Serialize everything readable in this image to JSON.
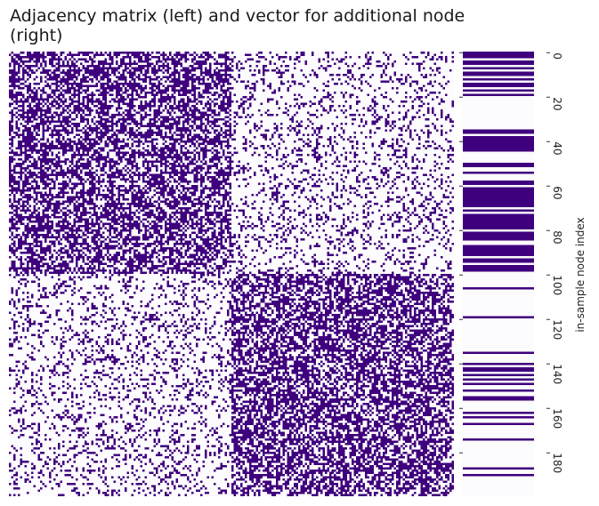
{
  "chart_data": {
    "type": "heatmap",
    "title": "Adjacency matrix (left) and vector for additional node (right)",
    "colors": {
      "on": "#3f007d",
      "off": "#fcfbfd"
    },
    "panels": [
      {
        "name": "adjacency-matrix",
        "kind": "matrix",
        "size": 200,
        "blocks": [
          [
            0,
            100
          ],
          [
            100,
            200
          ]
        ],
        "edge_probability": {
          "within_block": 0.6,
          "between_blocks": 0.2
        },
        "diagonal": 0
      },
      {
        "name": "additional-node-vector",
        "kind": "vector",
        "length": 200,
        "ylabel": "in-sample node index",
        "yticks": [
          0,
          20,
          40,
          60,
          80,
          100,
          120,
          140,
          160,
          180
        ],
        "on_ranges": [
          [
            0,
            3
          ],
          [
            4,
            6
          ],
          [
            7,
            8
          ],
          [
            9,
            11
          ],
          [
            12,
            13
          ],
          [
            14,
            16
          ],
          [
            17,
            18
          ],
          [
            19,
            20
          ],
          [
            35,
            37
          ],
          [
            38,
            45
          ],
          [
            50,
            52
          ],
          [
            54,
            55
          ],
          [
            58,
            60
          ],
          [
            61,
            70
          ],
          [
            71,
            72
          ],
          [
            73,
            80
          ],
          [
            81,
            85
          ],
          [
            87,
            92
          ],
          [
            93,
            95
          ],
          [
            96,
            99
          ],
          [
            106,
            107
          ],
          [
            119,
            120
          ],
          [
            135,
            136
          ],
          [
            140,
            141
          ],
          [
            142,
            144
          ],
          [
            145,
            146
          ],
          [
            147,
            148
          ],
          [
            149,
            150
          ],
          [
            152,
            153
          ],
          [
            155,
            157
          ],
          [
            162,
            163
          ],
          [
            164,
            165
          ],
          [
            167,
            168
          ],
          [
            174,
            175
          ],
          [
            187,
            188
          ],
          [
            190,
            191
          ]
        ]
      }
    ]
  }
}
